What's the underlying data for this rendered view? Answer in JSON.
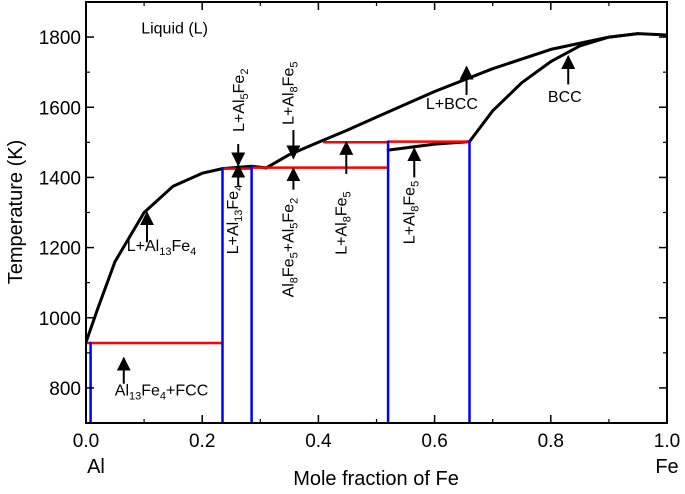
{
  "chart_data": {
    "type": "line",
    "title": "",
    "xlabel": "Mole fraction of Fe",
    "ylabel": "Temperature (K)",
    "xlim": [
      0.0,
      1.0
    ],
    "ylim": [
      700,
      1900
    ],
    "grid": false,
    "x_ticks": [
      {
        "value": 0.0,
        "label": "0.0"
      },
      {
        "value": 0.2,
        "label": "0.2"
      },
      {
        "value": 0.4,
        "label": "0.4"
      },
      {
        "value": 0.6,
        "label": "0.6"
      },
      {
        "value": 0.8,
        "label": "0.8"
      },
      {
        "value": 1.0,
        "label": "1.0"
      }
    ],
    "y_ticks": [
      {
        "value": 800,
        "label": "800"
      },
      {
        "value": 1000,
        "label": "1000"
      },
      {
        "value": 1200,
        "label": "1200"
      },
      {
        "value": 1400,
        "label": "1400"
      },
      {
        "value": 1600,
        "label": "1600"
      },
      {
        "value": 1800,
        "label": "1800"
      }
    ],
    "end_labels": {
      "left": "Al",
      "right": "Fe"
    },
    "colors": {
      "boundary": "#000000",
      "invariant": "#ff0000",
      "compound": "#0000ff"
    },
    "series": [
      {
        "kind": "boundary",
        "color": "#000000",
        "x": [
          0.0,
          0.02,
          0.05,
          0.1,
          0.15,
          0.2,
          0.235
        ],
        "y": [
          930,
          1025,
          1160,
          1300,
          1375,
          1412,
          1425
        ]
      },
      {
        "kind": "boundary",
        "color": "#000000",
        "x": [
          0.235,
          0.285,
          0.31
        ],
        "y": [
          1425,
          1432,
          1427
        ]
      },
      {
        "kind": "boundary",
        "color": "#000000",
        "x": [
          0.31,
          0.35,
          0.4,
          0.45,
          0.5,
          0.6,
          0.7,
          0.8,
          0.9,
          0.95,
          1.0
        ],
        "y": [
          1427,
          1465,
          1500,
          1535,
          1572,
          1645,
          1710,
          1765,
          1800,
          1810,
          1806
        ]
      },
      {
        "kind": "boundary",
        "color": "#000000",
        "x": [
          0.52,
          0.6,
          0.66
        ],
        "y": [
          1478,
          1495,
          1502
        ]
      },
      {
        "kind": "boundary",
        "color": "#000000",
        "x": [
          0.66,
          0.7,
          0.75,
          0.8,
          0.85,
          0.9,
          0.95
        ],
        "y": [
          1502,
          1590,
          1670,
          1730,
          1775,
          1800,
          1810
        ]
      },
      {
        "kind": "invariant",
        "color": "#ff0000",
        "x": [
          0.0,
          0.235
        ],
        "y": [
          928,
          928
        ]
      },
      {
        "kind": "invariant",
        "color": "#ff0000",
        "x": [
          0.235,
          0.285
        ],
        "y": [
          1425,
          1425
        ]
      },
      {
        "kind": "invariant",
        "color": "#ff0000",
        "x": [
          0.285,
          0.52
        ],
        "y": [
          1428,
          1428
        ]
      },
      {
        "kind": "invariant",
        "color": "#ff0000",
        "x": [
          0.41,
          0.52
        ],
        "y": [
          1500,
          1500
        ]
      },
      {
        "kind": "invariant",
        "color": "#ff0000",
        "x": [
          0.52,
          0.66
        ],
        "y": [
          1502,
          1502
        ]
      },
      {
        "kind": "compound",
        "color": "#0000ff",
        "x": [
          0.008,
          0.008
        ],
        "y": [
          700,
          928
        ]
      },
      {
        "kind": "compound",
        "color": "#0000ff",
        "x": [
          0.235,
          0.235
        ],
        "y": [
          700,
          1425
        ]
      },
      {
        "kind": "compound",
        "color": "#0000ff",
        "x": [
          0.285,
          0.285
        ],
        "y": [
          700,
          1432
        ]
      },
      {
        "kind": "compound",
        "color": "#0000ff",
        "x": [
          0.52,
          0.52
        ],
        "y": [
          700,
          1502
        ]
      },
      {
        "kind": "compound",
        "color": "#0000ff",
        "x": [
          0.66,
          0.66
        ],
        "y": [
          700,
          1502
        ]
      }
    ],
    "annotations": [
      {
        "id": "liquid",
        "segments": [
          {
            "t": "Liquid (L)"
          }
        ],
        "x": 0.095,
        "y": 1810,
        "rotate": 0,
        "anchor": "start"
      },
      {
        "id": "l-al13fe4",
        "segments": [
          {
            "t": "L+Al"
          },
          {
            "t": "13",
            "sub": true
          },
          {
            "t": "Fe"
          },
          {
            "t": "4",
            "sub": true
          }
        ],
        "x": 0.13,
        "y": 1190,
        "rotate": 0,
        "anchor": "middle",
        "arrow": {
          "x": 0.105,
          "y0": 1215,
          "y1": 1300
        }
      },
      {
        "id": "al13fe4-fcc",
        "segments": [
          {
            "t": "Al"
          },
          {
            "t": "13",
            "sub": true
          },
          {
            "t": "Fe"
          },
          {
            "t": "4",
            "sub": true
          },
          {
            "t": "+FCC"
          }
        ],
        "x": 0.13,
        "y": 778,
        "rotate": 0,
        "anchor": "middle",
        "arrow": {
          "x": 0.065,
          "y0": 812,
          "y1": 885
        }
      },
      {
        "id": "l-al13fe4-v",
        "segments": [
          {
            "t": "L+Al"
          },
          {
            "t": "13",
            "sub": true
          },
          {
            "t": "Fe"
          },
          {
            "t": "4",
            "sub": true
          }
        ],
        "x": 0.262,
        "y": 1280,
        "rotate": -90,
        "anchor": "middle",
        "arrow": {
          "x": 0.262,
          "y0": 1375,
          "y1": 1435
        }
      },
      {
        "id": "l-al5fe2",
        "segments": [
          {
            "t": "L+Al"
          },
          {
            "t": "5",
            "sub": true
          },
          {
            "t": "Fe"
          },
          {
            "t": "2",
            "sub": true
          }
        ],
        "x": 0.272,
        "y": 1620,
        "rotate": -90,
        "anchor": "middle",
        "arrow": {
          "x": 0.262,
          "y0": 1495,
          "y1": 1435
        }
      },
      {
        "id": "l-al8fe5-top",
        "segments": [
          {
            "t": "L+Al"
          },
          {
            "t": "8",
            "sub": true
          },
          {
            "t": "Fe"
          },
          {
            "t": "5",
            "sub": true
          }
        ],
        "x": 0.357,
        "y": 1640,
        "rotate": -90,
        "anchor": "middle",
        "arrow": {
          "x": 0.357,
          "y0": 1535,
          "y1": 1455
        }
      },
      {
        "id": "al8fe5-al5fe2",
        "segments": [
          {
            "t": "Al"
          },
          {
            "t": "8",
            "sub": true
          },
          {
            "t": "Fe"
          },
          {
            "t": "5",
            "sub": true
          },
          {
            "t": "+Al"
          },
          {
            "t": "5",
            "sub": true
          },
          {
            "t": "Fe"
          },
          {
            "t": "2",
            "sub": true
          }
        ],
        "x": 0.357,
        "y": 1200,
        "rotate": -90,
        "anchor": "middle",
        "arrow": {
          "x": 0.357,
          "y0": 1365,
          "y1": 1425
        }
      },
      {
        "id": "l-al8fe5-mid",
        "segments": [
          {
            "t": "L+Al"
          },
          {
            "t": "8",
            "sub": true
          },
          {
            "t": "Fe"
          },
          {
            "t": "5",
            "sub": true
          }
        ],
        "x": 0.448,
        "y": 1270,
        "rotate": -90,
        "anchor": "middle",
        "arrow": {
          "x": 0.448,
          "y0": 1410,
          "y1": 1500
        }
      },
      {
        "id": "l-al8fe5-right",
        "segments": [
          {
            "t": "L+Al"
          },
          {
            "t": "8",
            "sub": true
          },
          {
            "t": "Fe"
          },
          {
            "t": "5",
            "sub": true
          }
        ],
        "x": 0.565,
        "y": 1300,
        "rotate": -90,
        "anchor": "middle",
        "arrow": {
          "x": 0.565,
          "y0": 1400,
          "y1": 1482
        }
      },
      {
        "id": "l-bcc",
        "segments": [
          {
            "t": "L+BCC"
          }
        ],
        "x": 0.585,
        "y": 1595,
        "rotate": 0,
        "anchor": "start",
        "arrow": {
          "x": 0.655,
          "y0": 1635,
          "y1": 1715
        }
      },
      {
        "id": "bcc",
        "segments": [
          {
            "t": "BCC"
          }
        ],
        "x": 0.795,
        "y": 1615,
        "rotate": 0,
        "anchor": "start",
        "arrow": {
          "x": 0.83,
          "y0": 1665,
          "y1": 1745
        }
      }
    ]
  }
}
